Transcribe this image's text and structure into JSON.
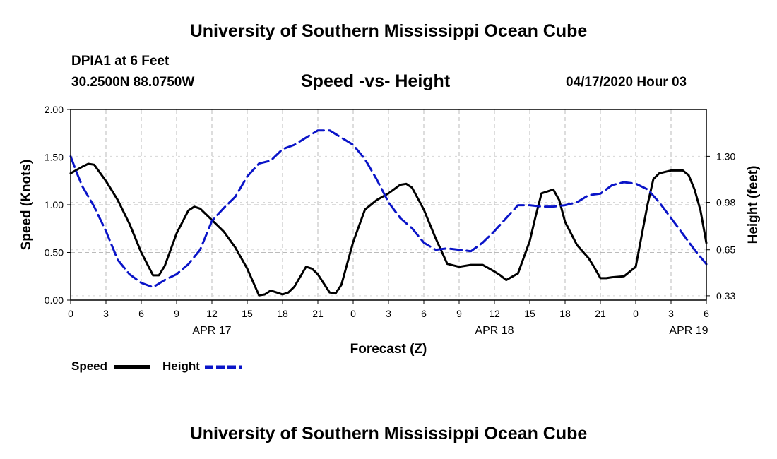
{
  "header": {
    "title_top": "University of Southern Mississippi Ocean Cube",
    "station": "DPIA1 at 6 Feet",
    "coords": "30.2500N 88.0750W",
    "chart_title": "Speed -vs- Height",
    "datetime": "04/17/2020 Hour 03",
    "title_bottom": "University of Southern Mississippi Ocean Cube"
  },
  "legend": {
    "speed_label": "Speed",
    "height_label": "Height"
  },
  "colors": {
    "speed": "#000000",
    "height": "#0a14c8",
    "grid": "#bbbbbb"
  },
  "chart_data": {
    "type": "line",
    "title": "Speed -vs- Height",
    "xlabel": "Forecast (Z)",
    "ylabel": "Speed (Knots)",
    "y2label": "Height (feet)",
    "xlim": [
      0,
      54
    ],
    "ylim": [
      0,
      2.0
    ],
    "y2lim": [
      0.3,
      1.626
    ],
    "x_ticks": [
      0,
      3,
      6,
      9,
      12,
      15,
      18,
      21,
      24,
      27,
      30,
      33,
      36,
      39,
      42,
      45,
      48,
      51,
      54
    ],
    "x_tick_labels": [
      "0",
      "3",
      "6",
      "9",
      "12",
      "15",
      "18",
      "21",
      "0",
      "3",
      "6",
      "9",
      "12",
      "15",
      "18",
      "21",
      "0",
      "3",
      "6"
    ],
    "y_ticks": [
      0,
      0.5,
      1.0,
      1.5,
      2.0
    ],
    "y_tick_labels": [
      "0.00",
      "0.50",
      "1.00",
      "1.50",
      "2.00"
    ],
    "y2_ticks": [
      0.33,
      0.65,
      0.98,
      1.3
    ],
    "y2_tick_labels": [
      "0.33",
      "0.65",
      "0.98",
      "1.30"
    ],
    "date_labels": [
      {
        "x": 12,
        "label": "APR 17"
      },
      {
        "x": 36,
        "label": "APR 18"
      },
      {
        "x": 52.5,
        "label": "APR 19"
      }
    ],
    "grid": true,
    "series": [
      {
        "name": "Speed",
        "axis": "left",
        "style": "solid",
        "x": [
          0,
          1,
          1.5,
          2,
          3,
          4,
          5,
          6,
          7,
          7.5,
          8,
          9,
          10,
          10.5,
          11,
          12,
          13,
          14,
          15,
          16,
          16.5,
          17,
          17.5,
          18,
          18.5,
          19,
          20,
          20.5,
          21,
          22,
          22.5,
          23,
          24,
          25,
          26,
          27,
          28,
          28.5,
          29,
          30,
          31,
          32,
          33,
          34,
          35,
          36,
          36.5,
          37,
          38,
          39,
          39.5,
          40,
          41,
          41.5,
          42,
          43,
          44,
          44.5,
          45,
          45.5,
          46,
          47,
          48,
          49,
          49.5,
          50,
          51,
          52,
          52.5,
          53,
          53.5,
          54
        ],
        "values": [
          1.33,
          1.4,
          1.43,
          1.42,
          1.25,
          1.05,
          0.8,
          0.5,
          0.26,
          0.26,
          0.36,
          0.7,
          0.94,
          0.98,
          0.96,
          0.84,
          0.72,
          0.55,
          0.33,
          0.05,
          0.06,
          0.1,
          0.08,
          0.06,
          0.08,
          0.14,
          0.35,
          0.33,
          0.27,
          0.08,
          0.07,
          0.16,
          0.61,
          0.95,
          1.05,
          1.12,
          1.21,
          1.22,
          1.18,
          0.95,
          0.65,
          0.38,
          0.35,
          0.37,
          0.37,
          0.3,
          0.26,
          0.21,
          0.28,
          0.62,
          0.88,
          1.12,
          1.16,
          1.05,
          0.82,
          0.58,
          0.44,
          0.34,
          0.23,
          0.23,
          0.24,
          0.25,
          0.35,
          1.0,
          1.27,
          1.33,
          1.36,
          1.36,
          1.31,
          1.16,
          0.94,
          0.6
        ]
      },
      {
        "name": "Height",
        "axis": "right",
        "style": "dashed",
        "x": [
          0,
          0.5,
          1,
          2,
          3,
          4,
          5,
          6,
          7,
          8,
          9,
          10,
          11,
          12,
          13,
          14,
          15,
          16,
          17,
          18,
          19,
          20,
          21,
          22,
          23,
          24,
          25,
          26,
          27,
          28,
          29,
          30,
          31,
          32,
          33,
          34,
          35,
          36,
          37,
          38,
          39,
          40,
          41,
          42,
          43,
          44,
          45,
          46,
          47,
          48,
          49,
          50,
          51,
          52,
          53,
          54
        ],
        "values": [
          1.3,
          1.19,
          1.09,
          0.95,
          0.78,
          0.58,
          0.48,
          0.42,
          0.39,
          0.44,
          0.48,
          0.55,
          0.65,
          0.85,
          0.94,
          1.02,
          1.16,
          1.25,
          1.27,
          1.35,
          1.38,
          1.43,
          1.48,
          1.48,
          1.43,
          1.38,
          1.28,
          1.14,
          0.98,
          0.87,
          0.8,
          0.7,
          0.65,
          0.66,
          0.65,
          0.64,
          0.7,
          0.78,
          0.87,
          0.96,
          0.96,
          0.95,
          0.95,
          0.96,
          0.98,
          1.03,
          1.04,
          1.1,
          1.12,
          1.11,
          1.07,
          0.98,
          0.87,
          0.76,
          0.65,
          0.55
        ]
      }
    ]
  }
}
